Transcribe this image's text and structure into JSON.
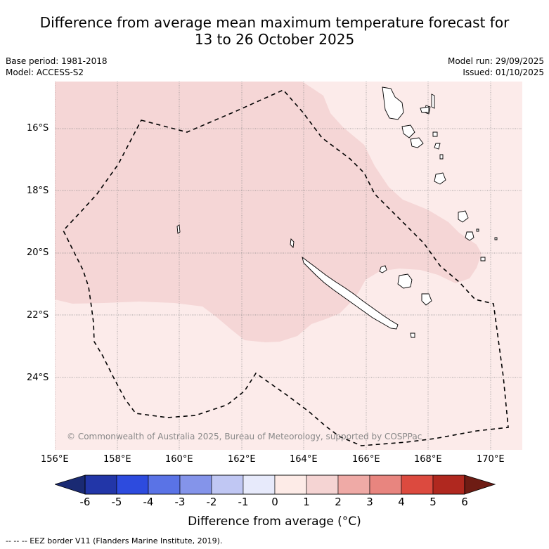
{
  "title": {
    "line1": "Difference from average mean maximum temperature forecast for",
    "line2": "13 to 26 October 2025"
  },
  "meta": {
    "base_period": "Base period: 1981-2018",
    "model": "Model: ACCESS-S2",
    "model_run": "Model run: 29/09/2025",
    "issued": "Issued: 01/10/2025"
  },
  "map": {
    "copyright": "© Commonwealth of Australia 2025, Bureau of Meteorology, supported by COSPPac",
    "lat_labels": [
      "16°S",
      "18°S",
      "20°S",
      "22°S",
      "24°S"
    ],
    "lon_labels": [
      "156°E",
      "158°E",
      "160°E",
      "162°E",
      "164°E",
      "166°E",
      "168°E",
      "170°E"
    ],
    "colors": {
      "anomaly_0_1": "#fcebea",
      "anomaly_1_2": "#f5d6d6",
      "land": "#ffffff",
      "coast": "#000000",
      "grid": "#888888",
      "eez": "#000000"
    }
  },
  "colorbar": {
    "title": "Difference from average (°C)",
    "ticks": [
      "-6",
      "-5",
      "-4",
      "-3",
      "-2",
      "-1",
      "0",
      "1",
      "2",
      "3",
      "4",
      "5",
      "6"
    ],
    "low_extend_color": "#1a2a73",
    "high_extend_color": "#6e1c14",
    "bins": [
      "#2236a8",
      "#2d4bde",
      "#5a73e6",
      "#8494ea",
      "#c0c7f3",
      "#e7eafb",
      "#fdebe7",
      "#f5d4d3",
      "#efaaa6",
      "#e8857f",
      "#dc4a3f",
      "#b0281f"
    ]
  },
  "legend_note": "--  --  -- EEZ border V11 (Flanders Marine Institute, 2019)."
}
